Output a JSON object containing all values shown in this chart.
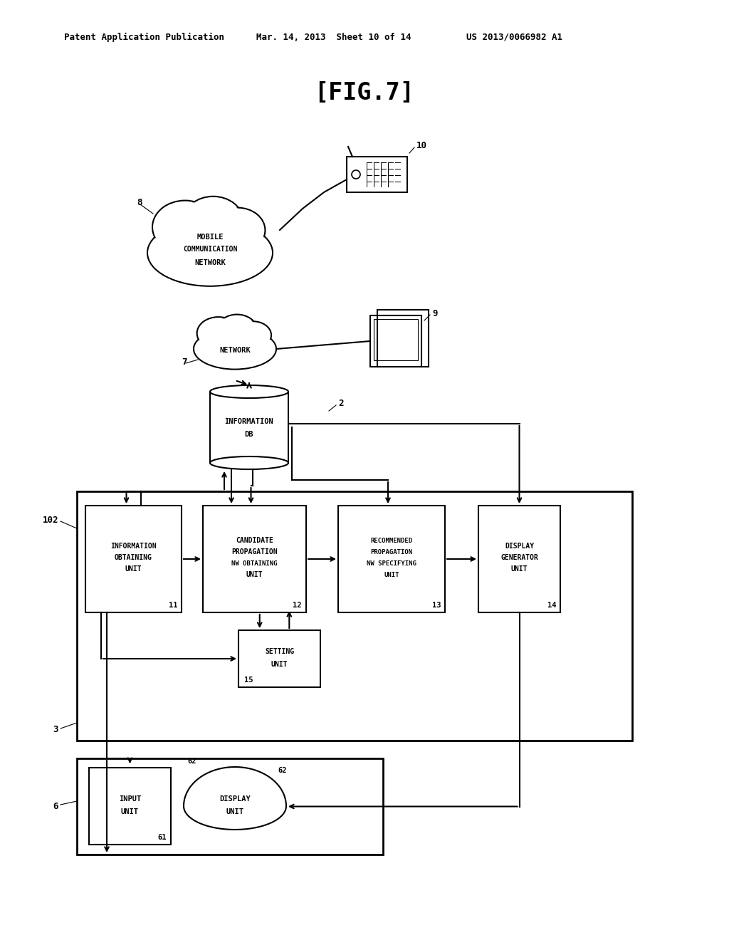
{
  "header_left": "Patent Application Publication",
  "header_mid": "Mar. 14, 2013  Sheet 10 of 14",
  "header_right": "US 2013/0066982 A1",
  "title": "[FIG.7]",
  "bg": "#ffffff"
}
